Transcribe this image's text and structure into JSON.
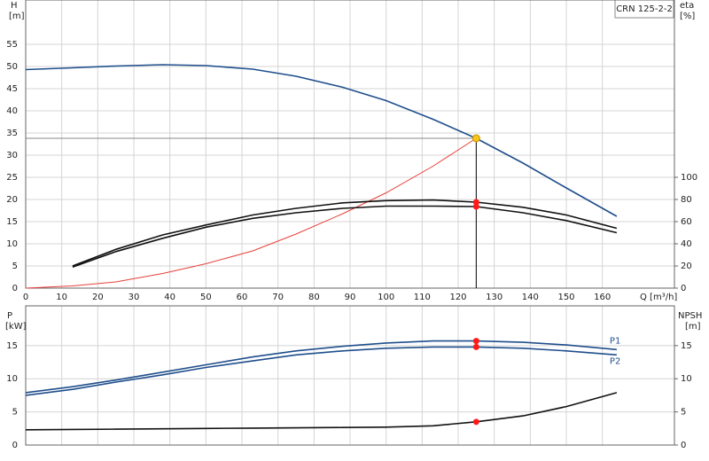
{
  "chart_data": [
    {
      "type": "line",
      "model_label": "CRN 125-2-2",
      "ylabel": "H",
      "yunit": "[m]",
      "y2label": "eta",
      "y2unit": "[%]",
      "xlabel": "Q [m³/h]",
      "x": [
        0,
        13,
        25,
        38,
        50,
        63,
        75,
        88,
        100,
        113,
        125,
        138,
        150,
        164
      ],
      "xlim": [
        0,
        180
      ],
      "xticks": [
        0,
        10,
        20,
        30,
        40,
        50,
        60,
        70,
        80,
        90,
        100,
        110,
        120,
        130,
        140,
        150,
        160
      ],
      "ylim": [
        0,
        65
      ],
      "yticks": [
        0,
        5,
        10,
        15,
        20,
        25,
        30,
        35,
        40,
        45,
        50,
        55
      ],
      "y2lim": [
        0,
        260
      ],
      "y2ticks": [
        0,
        20,
        40,
        60,
        80,
        100
      ],
      "grid": true,
      "duty_point": {
        "x": 125,
        "y": 33.8,
        "color": "#f5c518"
      },
      "series": [
        {
          "color": "#1f4e8c",
          "values": [
            49.3,
            49.7,
            50.1,
            50.4,
            50.2,
            49.4,
            47.8,
            45.3,
            42.3,
            38.1,
            33.8,
            28.2,
            22.6,
            16.2
          ]
        },
        {
          "color": "#e8403a",
          "values": [
            0,
            0.5,
            1.4,
            3.3,
            5.5,
            8.4,
            12.2,
            16.8,
            21.5,
            27.5,
            33.8,
            null,
            null,
            null
          ]
        },
        {
          "color": "#111111",
          "axis": "y2",
          "marker": true,
          "values": [
            null,
            20,
            35,
            48,
            57,
            66,
            72,
            77,
            79,
            79.5,
            77.6,
            73,
            66,
            54
          ]
        },
        {
          "color": "#111111",
          "axis": "y2",
          "marker": true,
          "values": [
            null,
            19,
            33,
            45,
            55,
            63,
            68,
            72,
            74,
            74,
            73.6,
            68,
            61,
            50
          ]
        }
      ]
    },
    {
      "type": "line",
      "ylabel": "P",
      "yunit": "[kW]",
      "y2label": "NPSH",
      "y2unit": "[m]",
      "x": [
        0,
        13,
        25,
        38,
        50,
        63,
        75,
        88,
        100,
        113,
        125,
        138,
        150,
        164
      ],
      "xlim": [
        0,
        180
      ],
      "ylim": [
        0,
        21
      ],
      "yticks": [
        0,
        5,
        10,
        15
      ],
      "y2lim": [
        0,
        21
      ],
      "y2ticks": [
        0,
        5,
        10,
        15
      ],
      "grid": true,
      "series": [
        {
          "name": "P1",
          "color": "#1f4e8c",
          "marker": true,
          "values": [
            7.9,
            8.8,
            9.8,
            11,
            12.1,
            13.3,
            14.2,
            14.9,
            15.4,
            15.7,
            15.7,
            15.5,
            15.1,
            14.4
          ]
        },
        {
          "name": "P2",
          "color": "#1f4e8c",
          "marker": true,
          "values": [
            7.5,
            8.4,
            9.5,
            10.6,
            11.7,
            12.7,
            13.6,
            14.2,
            14.6,
            14.8,
            14.8,
            14.6,
            14.2,
            13.6
          ]
        },
        {
          "color": "#111111",
          "axis": "y2",
          "marker": true,
          "values": [
            2.3,
            2.35,
            2.4,
            2.45,
            2.5,
            2.55,
            2.6,
            2.65,
            2.7,
            2.9,
            3.5,
            4.4,
            5.8,
            7.9
          ]
        }
      ]
    }
  ]
}
